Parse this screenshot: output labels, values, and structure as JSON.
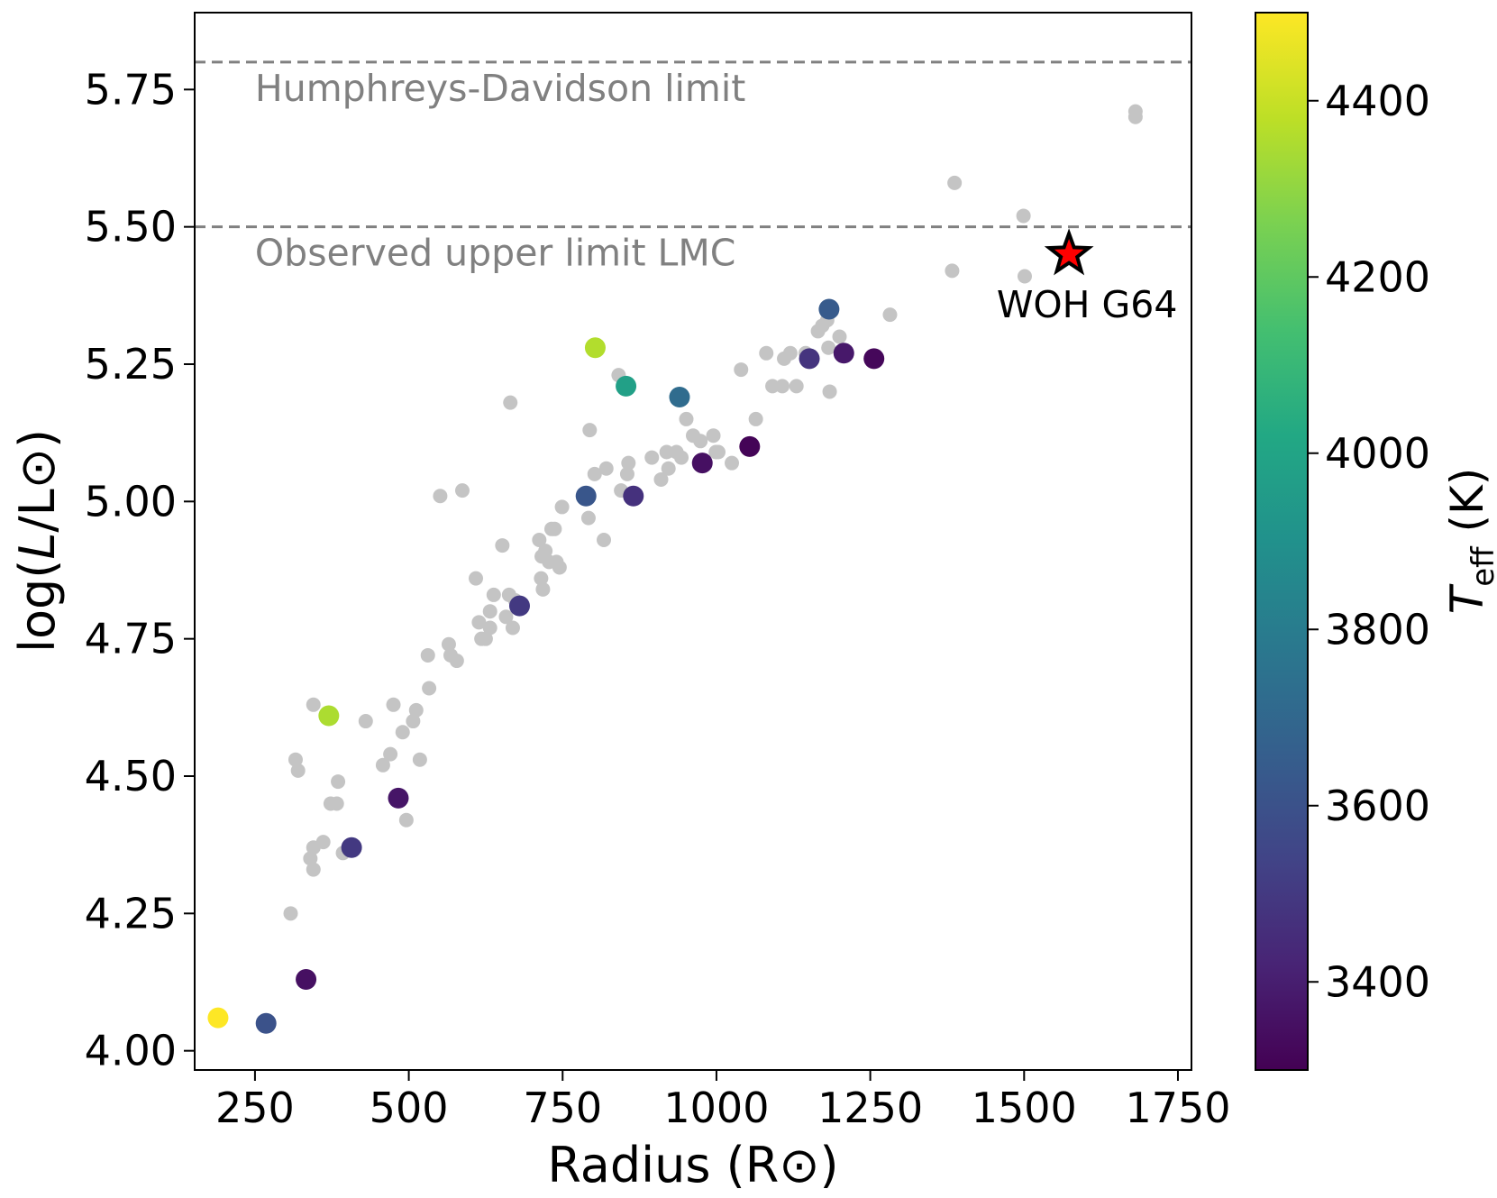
{
  "chart_data": {
    "type": "scatter",
    "xlabel": "Radius (R⊙)",
    "ylabel_prefix": "log(",
    "ylabel_italic": "L",
    "ylabel_suffix": "/L⊙)",
    "colorbar_label_italic": "T",
    "colorbar_label_sub": "eff",
    "colorbar_label_suffix": " (K)",
    "xlim": [
      152,
      1772
    ],
    "ylim": [
      3.965,
      5.89
    ],
    "x_ticks": [
      250,
      500,
      750,
      1000,
      1250,
      1500,
      1750
    ],
    "x_tick_labels": [
      "250",
      "500",
      "750",
      "1000",
      "1250",
      "1500",
      "1750"
    ],
    "y_ticks": [
      4.0,
      4.25,
      4.5,
      4.75,
      5.0,
      5.25,
      5.5,
      5.75
    ],
    "y_tick_labels": [
      "4.00",
      "4.25",
      "4.50",
      "4.75",
      "5.00",
      "5.25",
      "5.50",
      "5.75"
    ],
    "colorbar": {
      "colormap": "viridis",
      "range": [
        3300,
        4500
      ],
      "ticks": [
        3400,
        3600,
        3800,
        4000,
        4200,
        4400
      ],
      "tick_labels": [
        "3400",
        "3600",
        "3800",
        "4000",
        "4200",
        "4400"
      ]
    },
    "reference_lines": [
      {
        "y": 5.8,
        "label": "Humphreys-Davidson limit",
        "color": "#808080"
      },
      {
        "y": 5.5,
        "label": "Observed upper limit LMC",
        "color": "#808080"
      }
    ],
    "background_series": {
      "color": "#c4c4c4",
      "points": [
        [
          308,
          4.25
        ],
        [
          316,
          4.53
        ],
        [
          320,
          4.51
        ],
        [
          340,
          4.35
        ],
        [
          345,
          4.37
        ],
        [
          345,
          4.33
        ],
        [
          361,
          4.38
        ],
        [
          345,
          4.63
        ],
        [
          373,
          4.45
        ],
        [
          383,
          4.45
        ],
        [
          385,
          4.49
        ],
        [
          393,
          4.36
        ],
        [
          430,
          4.6
        ],
        [
          458,
          4.52
        ],
        [
          470,
          4.54
        ],
        [
          475,
          4.63
        ],
        [
          490,
          4.58
        ],
        [
          496,
          4.42
        ],
        [
          507,
          4.6
        ],
        [
          512,
          4.62
        ],
        [
          518,
          4.53
        ],
        [
          531,
          4.72
        ],
        [
          533,
          4.66
        ],
        [
          551,
          5.01
        ],
        [
          565,
          4.74
        ],
        [
          568,
          4.72
        ],
        [
          578,
          4.71
        ],
        [
          587,
          5.02
        ],
        [
          609,
          4.86
        ],
        [
          614,
          4.78
        ],
        [
          618,
          4.75
        ],
        [
          625,
          4.75
        ],
        [
          632,
          4.8
        ],
        [
          632,
          4.77
        ],
        [
          638,
          4.83
        ],
        [
          652,
          4.92
        ],
        [
          658,
          4.79
        ],
        [
          663,
          4.83
        ],
        [
          665,
          5.18
        ],
        [
          669,
          4.77
        ],
        [
          673,
          4.82
        ],
        [
          712,
          4.93
        ],
        [
          715,
          4.86
        ],
        [
          716,
          4.9
        ],
        [
          718,
          4.84
        ],
        [
          722,
          4.91
        ],
        [
          728,
          4.89
        ],
        [
          732,
          4.95
        ],
        [
          737,
          4.95
        ],
        [
          740,
          4.89
        ],
        [
          745,
          4.88
        ],
        [
          749,
          4.99
        ],
        [
          792,
          4.97
        ],
        [
          794,
          5.13
        ],
        [
          802,
          5.05
        ],
        [
          817,
          4.93
        ],
        [
          821,
          5.06
        ],
        [
          841,
          5.23
        ],
        [
          845,
          5.02
        ],
        [
          855,
          5.05
        ],
        [
          857,
          5.07
        ],
        [
          895,
          5.08
        ],
        [
          910,
          5.04
        ],
        [
          919,
          5.09
        ],
        [
          922,
          5.06
        ],
        [
          935,
          5.09
        ],
        [
          943,
          5.08
        ],
        [
          951,
          5.15
        ],
        [
          962,
          5.12
        ],
        [
          974,
          5.11
        ],
        [
          995,
          5.12
        ],
        [
          999,
          5.09
        ],
        [
          1003,
          5.09
        ],
        [
          1025,
          5.07
        ],
        [
          1040,
          5.24
        ],
        [
          1064,
          5.15
        ],
        [
          1081,
          5.27
        ],
        [
          1091,
          5.21
        ],
        [
          1107,
          5.21
        ],
        [
          1110,
          5.26
        ],
        [
          1120,
          5.27
        ],
        [
          1130,
          5.21
        ],
        [
          1145,
          5.27
        ],
        [
          1165,
          5.31
        ],
        [
          1172,
          5.32
        ],
        [
          1180,
          5.33
        ],
        [
          1182,
          5.28
        ],
        [
          1184,
          5.2
        ],
        [
          1200,
          5.3
        ],
        [
          1282,
          5.34
        ],
        [
          1383,
          5.42
        ],
        [
          1387,
          5.58
        ],
        [
          1499,
          5.52
        ],
        [
          1501,
          5.41
        ],
        [
          1681,
          5.71
        ],
        [
          1681,
          5.7
        ]
      ]
    },
    "colored_series": {
      "points": [
        [
          190,
          4.06,
          4500
        ],
        [
          268,
          4.05,
          3600
        ],
        [
          333,
          4.13,
          3350
        ],
        [
          370,
          4.61,
          4350
        ],
        [
          407,
          4.37,
          3500
        ],
        [
          483,
          4.46,
          3370
        ],
        [
          680,
          4.81,
          3500
        ],
        [
          788,
          5.01,
          3620
        ],
        [
          803,
          5.28,
          4360
        ],
        [
          853,
          5.21,
          3980
        ],
        [
          865,
          5.01,
          3470
        ],
        [
          940,
          5.19,
          3720
        ],
        [
          977,
          5.07,
          3350
        ],
        [
          1054,
          5.1,
          3310
        ],
        [
          1151,
          5.26,
          3480
        ],
        [
          1183,
          5.35,
          3640
        ],
        [
          1207,
          5.27,
          3380
        ],
        [
          1256,
          5.26,
          3320
        ]
      ]
    },
    "highlight": {
      "x": 1573,
      "y": 5.45,
      "label": "WOH G64",
      "color": "#ff0000",
      "edge_color": "#000000",
      "marker": "star"
    }
  }
}
